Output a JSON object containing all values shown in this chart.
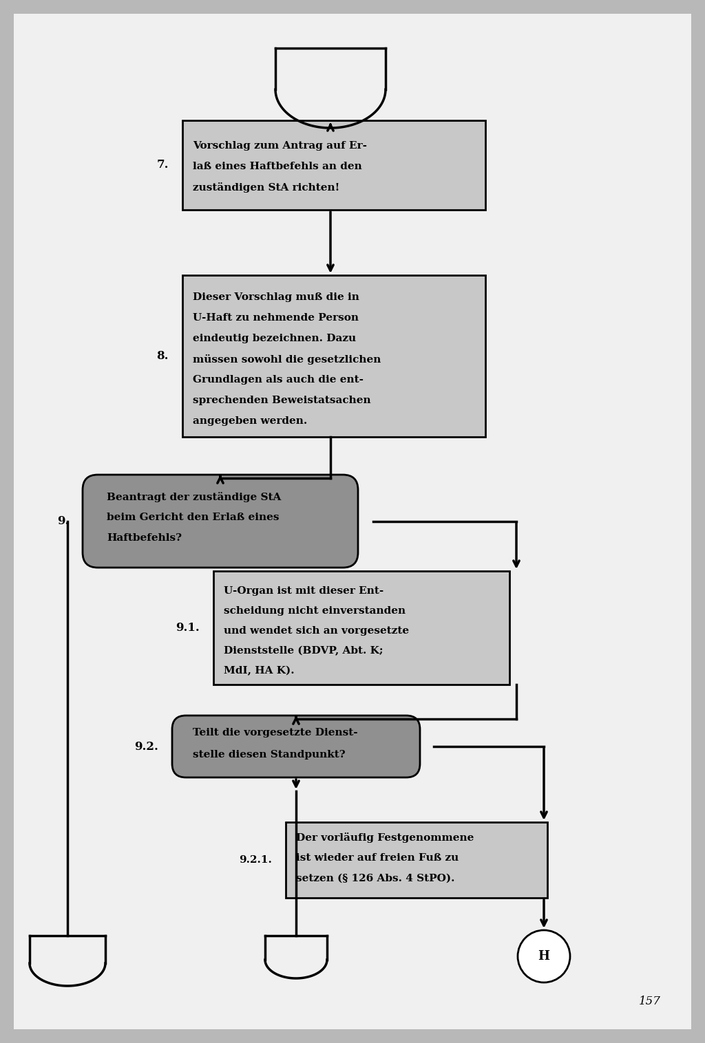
{
  "bg_color": "#b8b8b8",
  "page_bg": "#e8e8e8",
  "box_fill": "#c8c8c8",
  "decision_fill": "#888888",
  "box7_text": "Vorschlag zum Antrag auf Er-\nlaß eines Haftbefehls an den\nzuständigen StA richten!",
  "box8_text": "Dieser Vorschlag muß die in\nU-Haft zu nehmende Person\neindeutig bezeichnen. Dazu\nmüssen sowohl die gesetzlichen\nGrundlagen als auch die ent-\nsprechenden Beweistatsachen\nangegeben werden.",
  "box9_text": "Beantragt der zuständige StA\nbeim Gericht den Erlaß eines\nHaftbefehls?",
  "box91_text": "U-Organ ist mit dieser Ent-\nscheidung nicht einverstanden\nund wendet sich an vorgesetzte\nDienststelle (BDVP, Abt. K;\nMdI, HA K).",
  "box92_text": "Teilt die vorgesetzte Dienst-\nstelle diesen Standpunkt?",
  "box921_text": "Der vorläufig Festgenommene\nist wieder auf freien Fuß zu\nsetzen (§ 126 Abs. 4 StPO).",
  "label7": "7.",
  "label8": "8.",
  "label9": "9.",
  "label91": "9.1.",
  "label92": "9.2.",
  "label921": "9.2.1.",
  "page_number": "157"
}
